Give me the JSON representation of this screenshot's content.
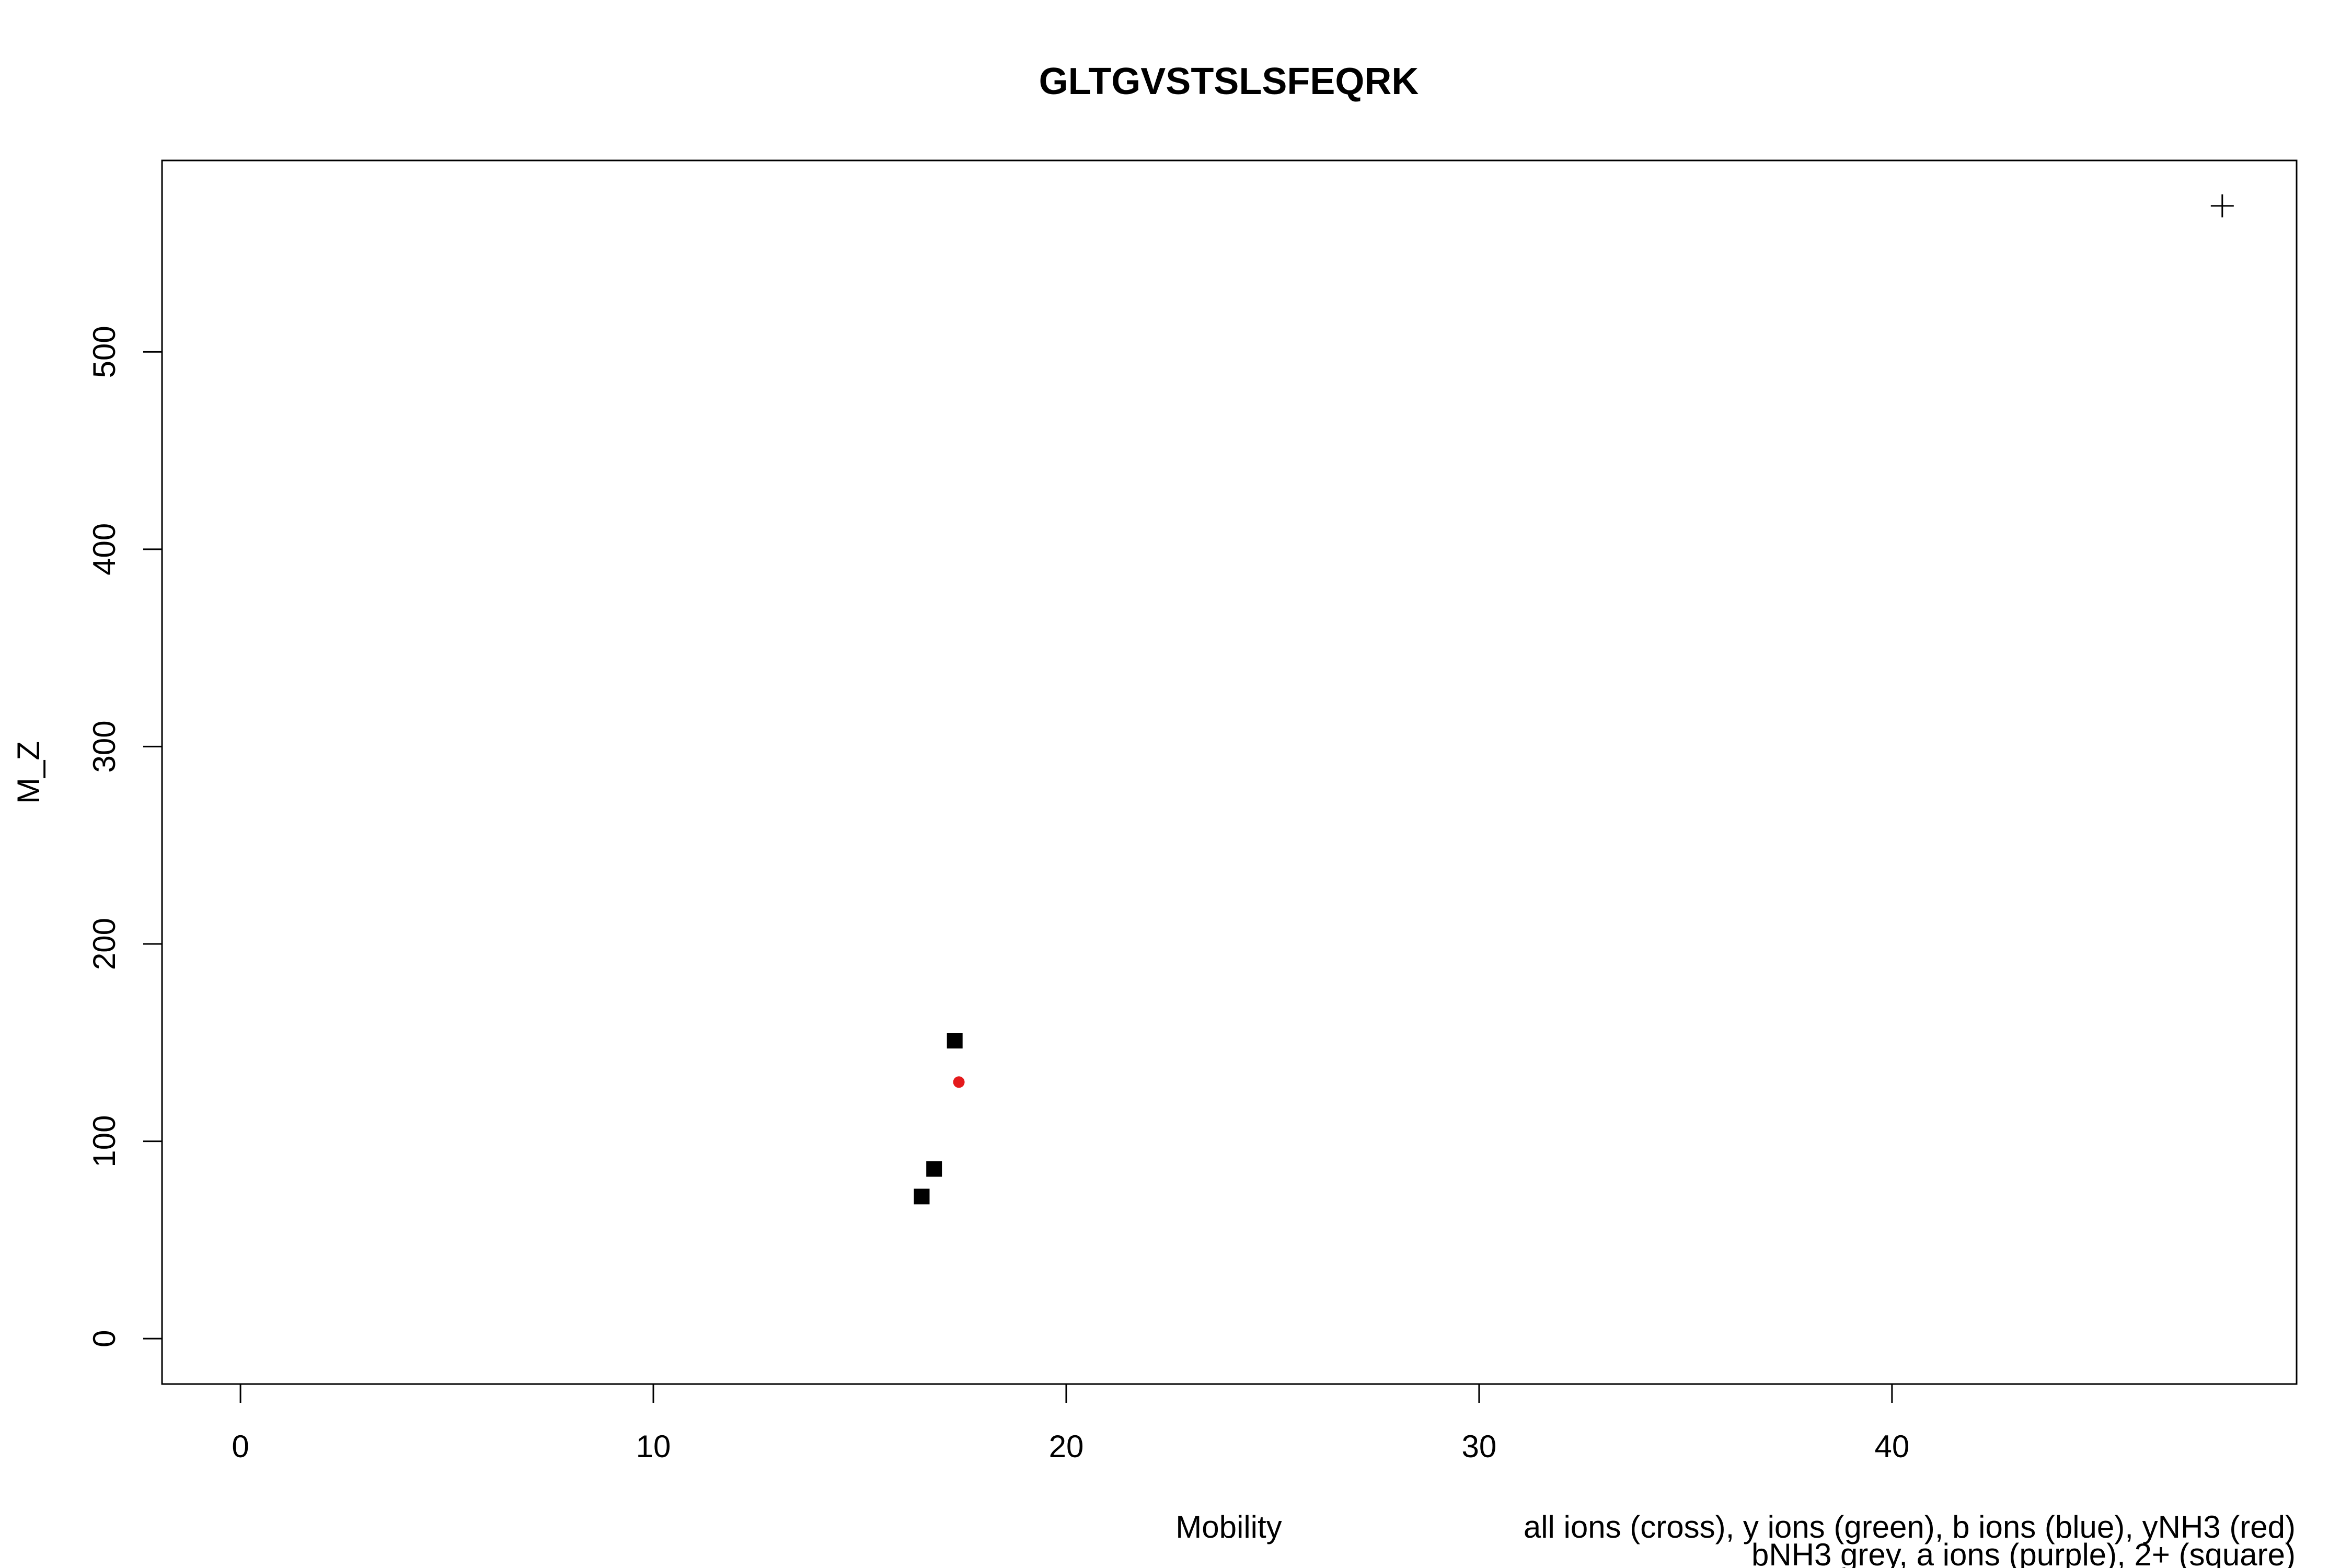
{
  "chart_data": {
    "type": "scatter",
    "title": "GLTGVSTSLSFEQRK",
    "xlabel": "Mobility",
    "ylabel": "M_Z",
    "xlim": [
      -1.9,
      49.8
    ],
    "ylim": [
      -23,
      597
    ],
    "x_ticks": [
      0,
      10,
      20,
      30,
      40
    ],
    "y_ticks": [
      0,
      100,
      200,
      300,
      400,
      500
    ],
    "grid": false,
    "legend_notes": [
      "all ions (cross), y ions (green), b ions (blue), yNH3 (red)",
      "bNH3 grey, a ions (purple), 2+ (square)"
    ],
    "series": [
      {
        "marker": "cross",
        "color": "#000000",
        "points": [
          {
            "x": 48.0,
            "y": 574
          }
        ]
      },
      {
        "marker": "dot",
        "color": "#e41a1c",
        "points": [
          {
            "x": 17.4,
            "y": 130
          }
        ]
      },
      {
        "marker": "square",
        "color": "#000000",
        "points": [
          {
            "x": 17.3,
            "y": 151
          },
          {
            "x": 16.8,
            "y": 86
          },
          {
            "x": 16.5,
            "y": 72
          }
        ]
      }
    ]
  }
}
